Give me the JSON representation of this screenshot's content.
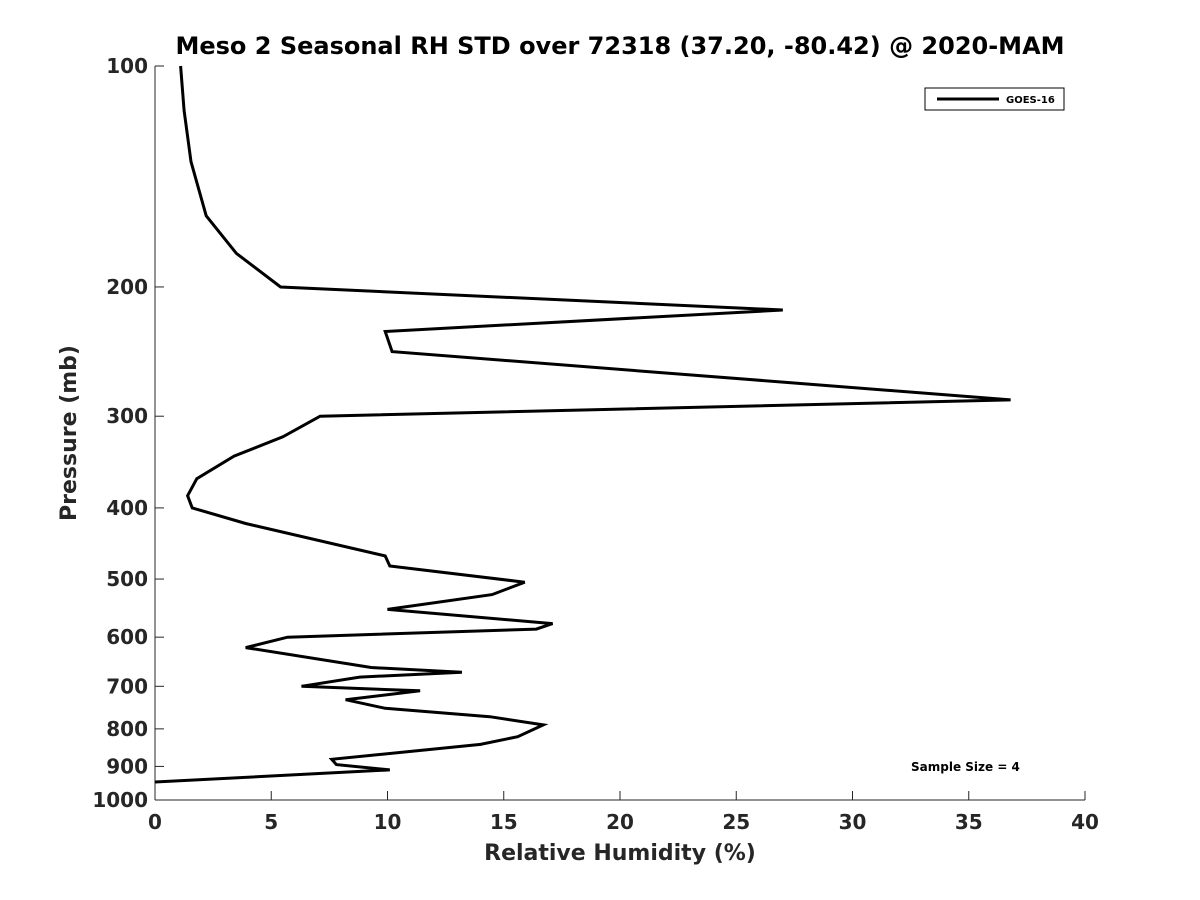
{
  "chart_data": {
    "type": "line",
    "title": "Meso 2 Seasonal RH STD over 72318 (37.20, -80.42) @ 2020-MAM",
    "xlabel": "Relative Humidity (%)",
    "ylabel": "Pressure (mb)",
    "xlim": [
      0,
      40
    ],
    "ylim": [
      100,
      1000
    ],
    "yscale": "log",
    "y_reversed": true,
    "xticks": [
      "0",
      "5",
      "10",
      "15",
      "20",
      "25",
      "30",
      "35",
      "40"
    ],
    "yticks": [
      "100",
      "200",
      "300",
      "400",
      "500",
      "600",
      "700",
      "800",
      "900",
      "1000"
    ],
    "legend": {
      "position": "top-right",
      "entries": [
        "GOES-16"
      ]
    },
    "annotation": "Sample Size = 4",
    "grid": false,
    "series": [
      {
        "name": "GOES-16",
        "color": "#000000",
        "x": [
          1.1,
          1.25,
          1.55,
          2.2,
          3.5,
          5.4,
          27.0,
          9.9,
          10.2,
          36.8,
          7.1,
          5.5,
          3.4,
          1.8,
          1.4,
          1.6,
          3.9,
          9.9,
          10.1,
          15.9,
          14.5,
          10.0,
          17.1,
          16.4,
          5.7,
          3.9,
          9.3,
          13.2,
          8.8,
          6.3,
          11.4,
          8.2,
          9.9,
          14.4,
          16.7,
          15.6,
          14.0,
          7.6,
          7.8,
          10.1,
          0.0
        ],
        "y": [
          100,
          115,
          135,
          160,
          180,
          200,
          215,
          230,
          245,
          285,
          300,
          320,
          340,
          365,
          385,
          400,
          420,
          465,
          480,
          505,
          525,
          550,
          575,
          585,
          600,
          620,
          660,
          670,
          680,
          700,
          710,
          730,
          750,
          770,
          790,
          820,
          840,
          880,
          895,
          910,
          945
        ]
      }
    ]
  }
}
